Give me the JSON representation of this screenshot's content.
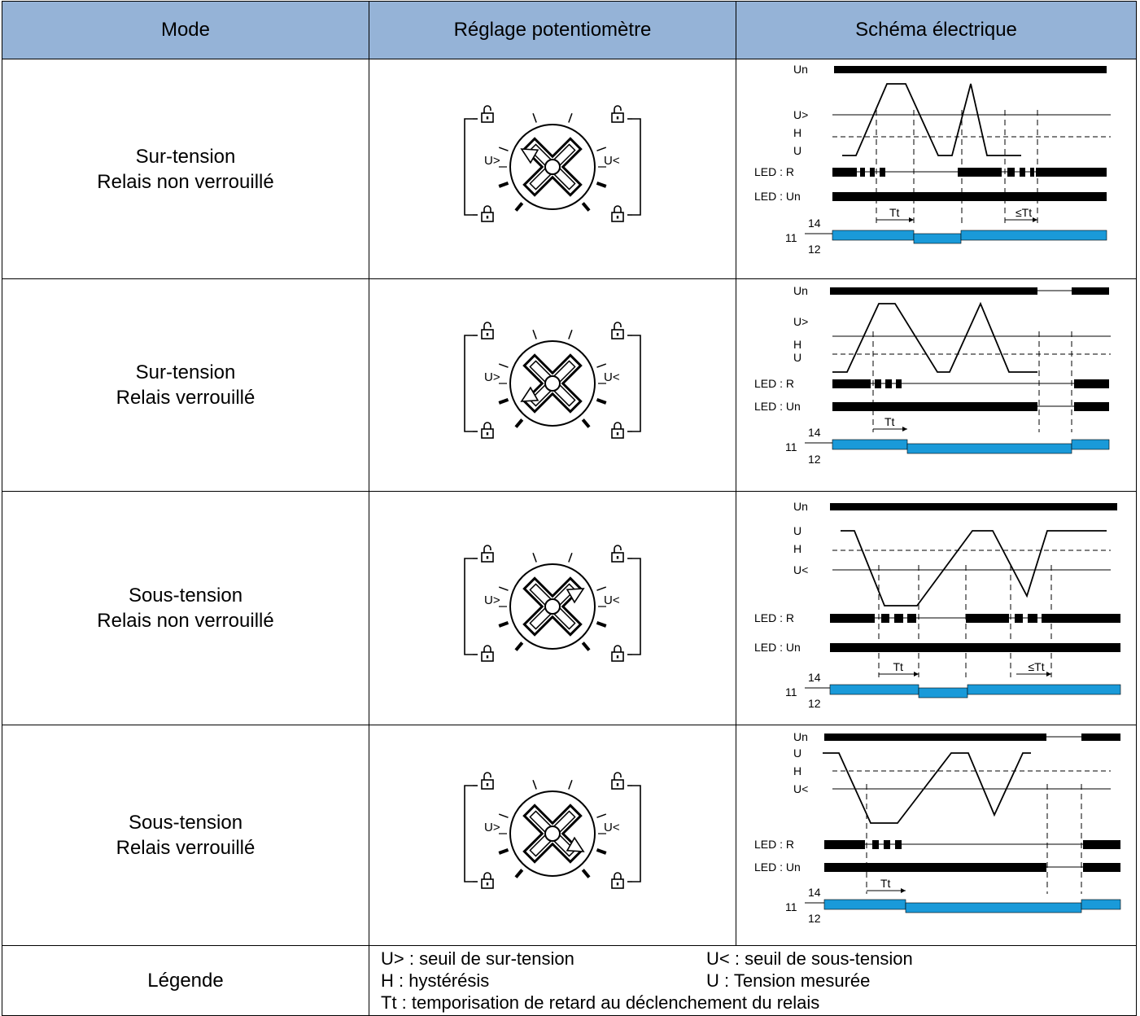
{
  "header": {
    "mode": "Mode",
    "potentiometer": "Réglage potentiomètre",
    "schematic": "Schéma électrique"
  },
  "rows": [
    {
      "line1": "Sur-tension",
      "line2": "Relais non verrouillé"
    },
    {
      "line1": "Sur-tension",
      "line2": "Relais verrouillé"
    },
    {
      "line1": "Sous-tension",
      "line2": "Relais non verrouillé"
    },
    {
      "line1": "Sous-tension",
      "line2": "Relais verrouillé"
    }
  ],
  "dial": {
    "left_label": "U>",
    "right_label": "U<"
  },
  "diagram_labels": {
    "un": "Un",
    "u_over": "U>",
    "u_under": "U<",
    "h": "H",
    "u": "U",
    "led_r": "LED : R",
    "led_un": "LED : Un",
    "tt": "Tt",
    "tt_le": "≤Tt",
    "t14": "14",
    "t11": "11",
    "t12": "12"
  },
  "legend": {
    "label": "Légende",
    "u_over": "U> : seuil de sur-tension",
    "u_under": "U< : seuil de sous-tension",
    "h": "H : hystérésis",
    "u": "U : Tension mesurée",
    "tt": "Tt : temporisation de retard au déclenchement du relais"
  },
  "colors": {
    "header_bg": "#95b3d7",
    "relay_blue": "#1a9ad9"
  }
}
